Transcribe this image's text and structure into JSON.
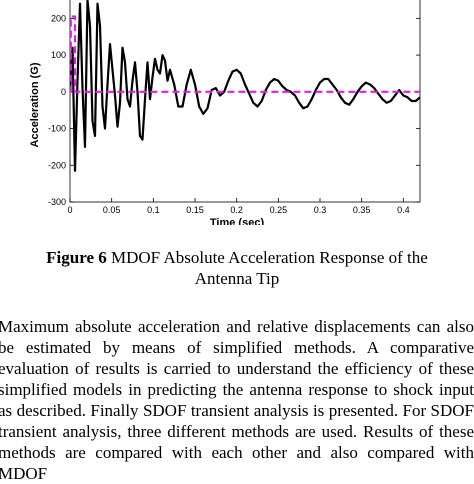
{
  "chart_data": {
    "type": "line",
    "xlabel": "Time (sec)",
    "ylabel": "Acceleration (G)",
    "xlim": [
      0,
      0.42
    ],
    "ylim": [
      -300,
      250
    ],
    "xticks": [
      "0",
      "0.05",
      "0.1",
      "0.15",
      "0.2",
      "0.25",
      "0.3",
      "0.35",
      "0.4"
    ],
    "yticks": [
      "-300",
      "-200",
      "-100",
      "0",
      "100",
      "200"
    ],
    "series": [
      {
        "color": "#000000",
        "style": "solid",
        "x": [
          0,
          0.003,
          0.006,
          0.009,
          0.012,
          0.015,
          0.018,
          0.021,
          0.024,
          0.027,
          0.03,
          0.033,
          0.036,
          0.039,
          0.042,
          0.045,
          0.048,
          0.051,
          0.054,
          0.057,
          0.06,
          0.063,
          0.066,
          0.069,
          0.072,
          0.075,
          0.078,
          0.081,
          0.084,
          0.087,
          0.09,
          0.093,
          0.096,
          0.099,
          0.102,
          0.105,
          0.108,
          0.111,
          0.114,
          0.117,
          0.12,
          0.125,
          0.13,
          0.135,
          0.14,
          0.145,
          0.15,
          0.155,
          0.16,
          0.165,
          0.17,
          0.175,
          0.18,
          0.185,
          0.19,
          0.195,
          0.2,
          0.205,
          0.21,
          0.215,
          0.22,
          0.225,
          0.23,
          0.235,
          0.24,
          0.245,
          0.25,
          0.255,
          0.26,
          0.265,
          0.27,
          0.275,
          0.28,
          0.285,
          0.29,
          0.295,
          0.3,
          0.305,
          0.31,
          0.315,
          0.32,
          0.325,
          0.33,
          0.335,
          0.34,
          0.345,
          0.35,
          0.355,
          0.36,
          0.365,
          0.37,
          0.375,
          0.38,
          0.385,
          0.39,
          0.395,
          0.4,
          0.405,
          0.41,
          0.415,
          0.42
        ],
        "y": [
          0,
          120,
          -215,
          30,
          240,
          10,
          -150,
          250,
          180,
          -80,
          -120,
          240,
          180,
          -40,
          -100,
          20,
          130,
          60,
          -10,
          -95,
          -30,
          120,
          80,
          -20,
          -40,
          30,
          80,
          0,
          -120,
          -130,
          -20,
          80,
          -20,
          40,
          90,
          60,
          50,
          100,
          85,
          30,
          60,
          20,
          -40,
          -40,
          20,
          60,
          20,
          -40,
          -60,
          -45,
          5,
          10,
          -10,
          0,
          30,
          55,
          60,
          50,
          20,
          -5,
          -30,
          -40,
          -25,
          5,
          25,
          35,
          30,
          15,
          5,
          0,
          -10,
          -30,
          -45,
          -40,
          -20,
          5,
          25,
          35,
          35,
          20,
          5,
          -15,
          -30,
          -35,
          -20,
          0,
          15,
          25,
          20,
          10,
          -5,
          -20,
          -30,
          -25,
          -10,
          5,
          -10,
          -15,
          -25,
          -25,
          -15
        ]
      },
      {
        "color": "#e020e0",
        "style": "dashed",
        "x": [
          0,
          0.001,
          0.001,
          0.006,
          0.006,
          0.42
        ],
        "y": [
          0,
          0,
          205,
          205,
          0,
          0
        ]
      }
    ]
  },
  "caption": {
    "label": "Figure 6",
    "text": " MDOF Absolute Acceleration Response of the Antenna Tip"
  },
  "body_text": "Maximum absolute acceleration and relative displacements can also be estimated by means of simplified methods. A comparative evaluation of results is carried to understand the efficiency of these simplified models in predicting the antenna response to shock input as described. Finally SDOF transient analysis is presented. For SDOF transient analysis, three different methods are used. Results of these methods are compared with each other and also compared with MDOF"
}
